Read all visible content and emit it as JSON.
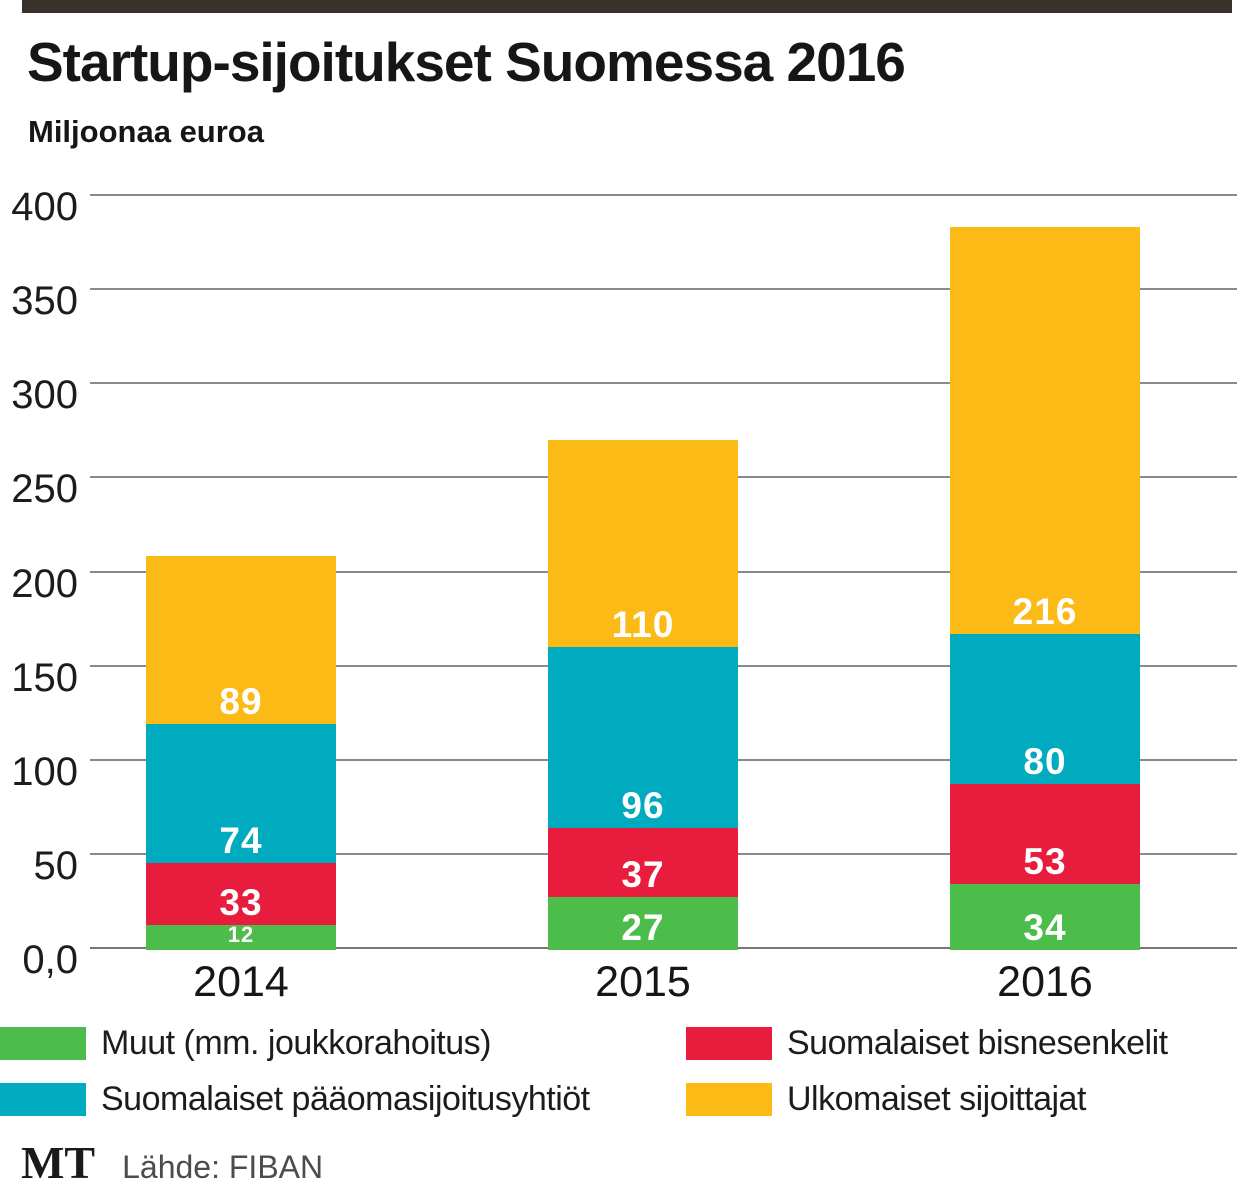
{
  "colors": {
    "top_bar": "#39322a",
    "grid": "#8a8a8a",
    "axis": "#777777"
  },
  "footer": {
    "logo": "MT",
    "source": "Lähde: FIBAN"
  },
  "chart_data": {
    "type": "bar",
    "stacked": true,
    "title": "Startup-sijoitukset Suomessa 2016",
    "ylabel": "Miljoonaa euroa",
    "xlabel": "",
    "categories": [
      "2014",
      "2015",
      "2016"
    ],
    "series": [
      {
        "name": "Muut (mm. joukkorahoitus)",
        "color": "#4cbc4a",
        "values": [
          12,
          27,
          34
        ]
      },
      {
        "name": "Suomalaiset bisnesenkelit",
        "color": "#e81c3c",
        "values": [
          33,
          37,
          53
        ]
      },
      {
        "name": "Suomalaiset pääomasijoitusyhtiöt",
        "color": "#00abbf",
        "values": [
          74,
          96,
          80
        ]
      },
      {
        "name": "Ulkomaiset sijoittajat",
        "color": "#fbba16",
        "values": [
          89,
          110,
          216
        ]
      }
    ],
    "ylim": [
      0,
      400
    ],
    "yticks": [
      {
        "label": "400",
        "value": 400
      },
      {
        "label": "350",
        "value": 350
      },
      {
        "label": "300",
        "value": 300
      },
      {
        "label": "250",
        "value": 250
      },
      {
        "label": "200",
        "value": 200
      },
      {
        "label": "150",
        "value": 150
      },
      {
        "label": "100",
        "value": 100
      },
      {
        "label": "50",
        "value": 50
      },
      {
        "label": "0,0",
        "value": 0
      }
    ],
    "grid": true,
    "legend_position": "bottom"
  }
}
